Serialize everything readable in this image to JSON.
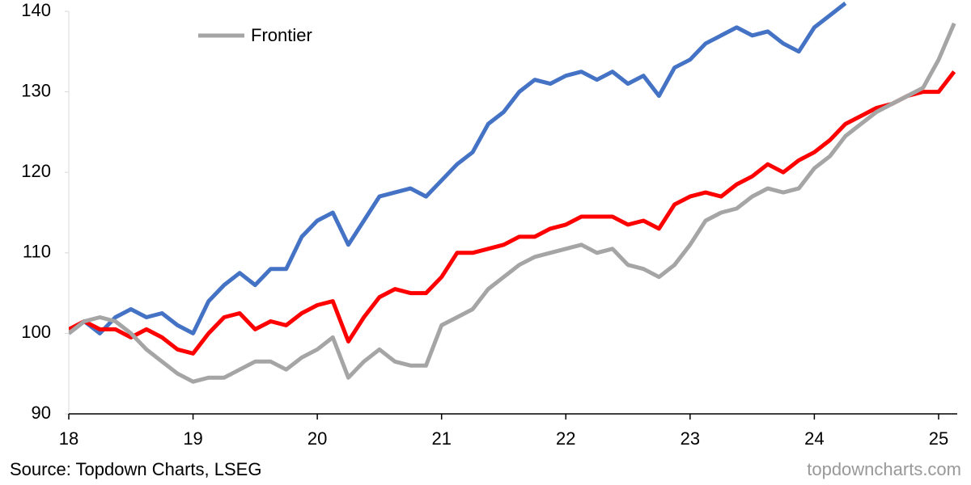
{
  "chart_data": {
    "type": "line",
    "x": [
      18,
      18.125,
      18.25,
      18.375,
      18.5,
      18.625,
      18.75,
      18.875,
      19,
      19.125,
      19.25,
      19.375,
      19.5,
      19.625,
      19.75,
      19.875,
      20,
      20.125,
      20.25,
      20.375,
      20.5,
      20.625,
      20.75,
      20.875,
      21,
      21.125,
      21.25,
      21.375,
      21.5,
      21.625,
      21.75,
      21.875,
      22,
      22.125,
      22.25,
      22.375,
      22.5,
      22.625,
      22.75,
      22.875,
      23,
      23.125,
      23.25,
      23.375,
      23.5,
      23.625,
      23.75,
      23.875,
      24,
      24.125,
      24.25,
      24.375,
      24.5,
      24.625,
      24.75,
      24.875,
      25,
      25.125
    ],
    "series": [
      {
        "color": "#4472c4",
        "values": [
          100,
          101.5,
          100,
          102,
          103,
          102,
          102.5,
          101,
          100,
          104,
          106,
          107.5,
          106,
          108,
          108,
          112,
          114,
          115,
          111,
          114,
          117,
          117.5,
          118,
          117,
          119,
          121,
          122.5,
          126,
          127.5,
          130,
          131.5,
          131,
          132,
          132.5,
          131.5,
          132.5,
          131,
          132,
          129.5,
          133,
          134,
          136,
          137,
          138,
          137,
          137.5,
          136,
          135,
          138,
          139.5,
          141,
          null,
          null,
          null,
          null,
          null,
          null,
          null
        ]
      },
      {
        "color": "#ff0000",
        "values": [
          100.5,
          101.5,
          100.5,
          100.5,
          99.5,
          100.5,
          99.5,
          98,
          97.5,
          100,
          102,
          102.5,
          100.5,
          101.5,
          101,
          102.5,
          103.5,
          104,
          99,
          102,
          104.5,
          105.5,
          105,
          105,
          107,
          110,
          110,
          110.5,
          111,
          112,
          112,
          113,
          113.5,
          114.5,
          114.5,
          114.5,
          113.5,
          114,
          113,
          116,
          117,
          117.5,
          117,
          118.5,
          119.5,
          121,
          120,
          121.5,
          122.5,
          124,
          126,
          127,
          128,
          128.5,
          129.5,
          130,
          130,
          132.5
        ]
      },
      {
        "name": "Frontier",
        "color": "#a5a5a5",
        "values": [
          100,
          101.5,
          102,
          101.5,
          100,
          98,
          96.5,
          95,
          94,
          94.5,
          94.5,
          95.5,
          96.5,
          96.5,
          95.5,
          97,
          98,
          99.5,
          94.5,
          96.5,
          98,
          96.5,
          96,
          96,
          101,
          102,
          103,
          105.5,
          107,
          108.5,
          109.5,
          110,
          110.5,
          111,
          110,
          110.5,
          108.5,
          108,
          107,
          108.5,
          111,
          114,
          115,
          115.5,
          117,
          118,
          117.5,
          118,
          120.5,
          122,
          124.5,
          126,
          127.5,
          128.5,
          129.5,
          130.5,
          134,
          138.5
        ]
      }
    ],
    "xlim": [
      18,
      25.15
    ],
    "xticks": [
      18,
      19,
      20,
      21,
      22,
      23,
      24,
      25
    ],
    "ylim": [
      90,
      140
    ],
    "yticks": [
      90,
      100,
      110,
      120,
      130,
      140
    ],
    "source": "Source: Topdown Charts, LSEG",
    "watermark": "topdowncharts.com"
  }
}
